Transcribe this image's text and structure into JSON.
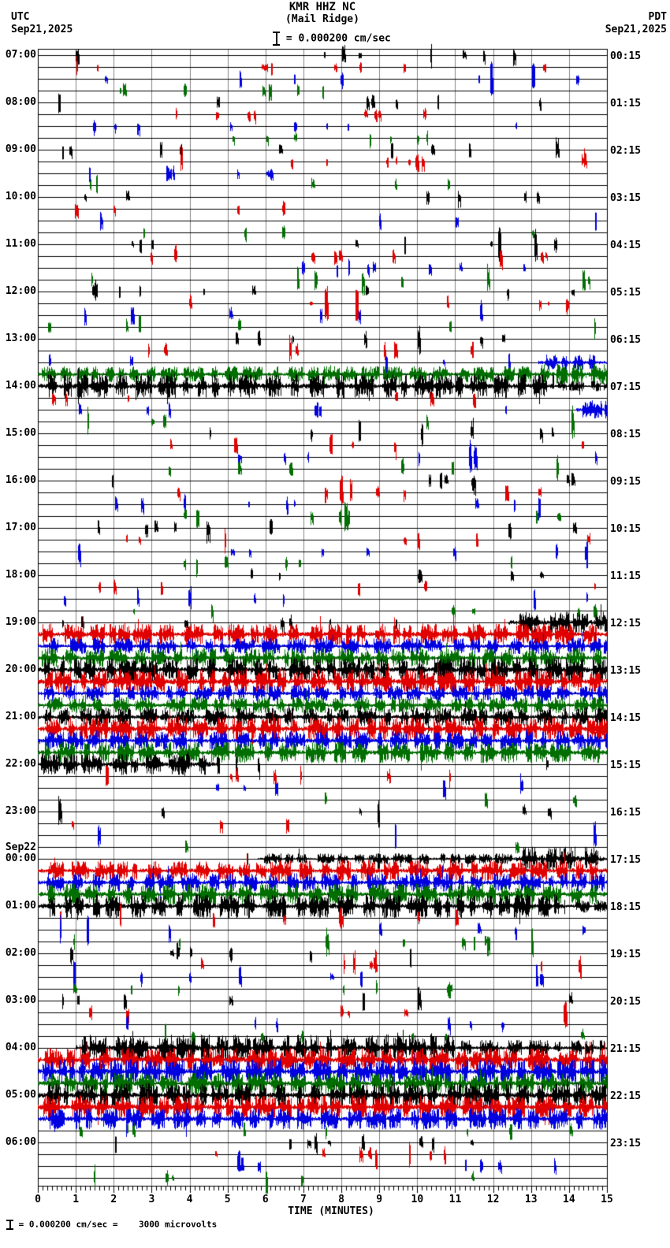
{
  "header": {
    "station_line": "KMR HHZ NC",
    "location_line": "(Mail Ridge)",
    "scale_text": "= 0.000200 cm/sec",
    "left_tz": "UTC",
    "left_date": "Sep21,2025",
    "right_tz": "PDT",
    "right_date": "Sep21,2025"
  },
  "footer": {
    "text": "= 0.000200 cm/sec =    3000 microvolts"
  },
  "axis": {
    "label": "TIME (MINUTES)",
    "ticks": [
      "0",
      "1",
      "2",
      "3",
      "4",
      "5",
      "6",
      "7",
      "8",
      "9",
      "10",
      "11",
      "12",
      "13",
      "14",
      "15"
    ],
    "minutes": 15,
    "minor_per_minute": 8
  },
  "colors": {
    "traces": [
      "#000000",
      "#e00000",
      "#0000e0",
      "#006e00"
    ],
    "grid": "#848484",
    "line": "#000000",
    "background": "#ffffff"
  },
  "chart_data": {
    "type": "helicorder",
    "row_minutes": 15,
    "date_break_label": "Sep22",
    "rows": [
      {
        "utc": "07:00",
        "pdt": "00:15",
        "c": 0,
        "spikes": 8,
        "dense": []
      },
      {
        "utc": null,
        "pdt": null,
        "c": 1,
        "spikes": 9,
        "dense": []
      },
      {
        "utc": null,
        "pdt": null,
        "c": 2,
        "spikes": 8,
        "dense": []
      },
      {
        "utc": null,
        "pdt": null,
        "c": 3,
        "spikes": 7,
        "dense": []
      },
      {
        "utc": "08:00",
        "pdt": "01:15",
        "c": 0,
        "spikes": 7,
        "dense": []
      },
      {
        "utc": null,
        "pdt": null,
        "c": 1,
        "spikes": 8,
        "dense": []
      },
      {
        "utc": null,
        "pdt": null,
        "c": 2,
        "spikes": 8,
        "dense": []
      },
      {
        "utc": null,
        "pdt": null,
        "c": 3,
        "spikes": 7,
        "dense": []
      },
      {
        "utc": "09:00",
        "pdt": "02:15",
        "c": 0,
        "spikes": 9,
        "dense": []
      },
      {
        "utc": null,
        "pdt": null,
        "c": 1,
        "spikes": 10,
        "dense": []
      },
      {
        "utc": null,
        "pdt": null,
        "c": 2,
        "spikes": 8,
        "dense": []
      },
      {
        "utc": null,
        "pdt": null,
        "c": 3,
        "spikes": 5,
        "dense": []
      },
      {
        "utc": "10:00",
        "pdt": "03:15",
        "c": 0,
        "spikes": 6,
        "dense": []
      },
      {
        "utc": null,
        "pdt": null,
        "c": 1,
        "spikes": 4,
        "dense": []
      },
      {
        "utc": null,
        "pdt": null,
        "c": 2,
        "spikes": 4,
        "dense": []
      },
      {
        "utc": null,
        "pdt": null,
        "c": 3,
        "spikes": 4,
        "dense": []
      },
      {
        "utc": "11:00",
        "pdt": "04:15",
        "c": 0,
        "spikes": 9,
        "dense": []
      },
      {
        "utc": null,
        "pdt": null,
        "c": 1,
        "spikes": 9,
        "dense": []
      },
      {
        "utc": null,
        "pdt": null,
        "c": 2,
        "spikes": 8,
        "dense": []
      },
      {
        "utc": null,
        "pdt": null,
        "c": 3,
        "spikes": 8,
        "dense": []
      },
      {
        "utc": "12:00",
        "pdt": "05:15",
        "c": 0,
        "spikes": 9,
        "dense": []
      },
      {
        "utc": null,
        "pdt": null,
        "c": 1,
        "spikes": 8,
        "dense": []
      },
      {
        "utc": null,
        "pdt": null,
        "c": 2,
        "spikes": 6,
        "dense": []
      },
      {
        "utc": null,
        "pdt": null,
        "c": 3,
        "spikes": 6,
        "dense": []
      },
      {
        "utc": "13:00",
        "pdt": "06:15",
        "c": 0,
        "spikes": 7,
        "dense": []
      },
      {
        "utc": null,
        "pdt": null,
        "c": 1,
        "spikes": 7,
        "dense": []
      },
      {
        "utc": null,
        "pdt": null,
        "c": 2,
        "spikes": 5,
        "dense": [
          [
            13.2,
            15,
            6
          ]
        ]
      },
      {
        "utc": null,
        "pdt": null,
        "c": 3,
        "spikes": 0,
        "dense": [
          [
            0,
            13,
            6
          ],
          [
            13,
            15,
            8
          ]
        ]
      },
      {
        "utc": "14:00",
        "pdt": "07:15",
        "c": 0,
        "spikes": 0,
        "dense": [
          [
            0,
            13.6,
            9
          ],
          [
            13.6,
            15,
            4
          ]
        ]
      },
      {
        "utc": null,
        "pdt": null,
        "c": 1,
        "spikes": 6,
        "dense": []
      },
      {
        "utc": null,
        "pdt": null,
        "c": 2,
        "spikes": 7,
        "dense": [
          [
            14.2,
            15,
            7
          ]
        ]
      },
      {
        "utc": null,
        "pdt": null,
        "c": 3,
        "spikes": 5,
        "dense": []
      },
      {
        "utc": "15:00",
        "pdt": "08:15",
        "c": 0,
        "spikes": 7,
        "dense": []
      },
      {
        "utc": null,
        "pdt": null,
        "c": 1,
        "spikes": 6,
        "dense": []
      },
      {
        "utc": null,
        "pdt": null,
        "c": 2,
        "spikes": 7,
        "dense": []
      },
      {
        "utc": null,
        "pdt": null,
        "c": 3,
        "spikes": 6,
        "dense": []
      },
      {
        "utc": "16:00",
        "pdt": "09:15",
        "c": 0,
        "spikes": 8,
        "dense": []
      },
      {
        "utc": null,
        "pdt": null,
        "c": 1,
        "spikes": 8,
        "dense": []
      },
      {
        "utc": null,
        "pdt": null,
        "c": 2,
        "spikes": 9,
        "dense": []
      },
      {
        "utc": null,
        "pdt": null,
        "c": 3,
        "spikes": 8,
        "dense": []
      },
      {
        "utc": "17:00",
        "pdt": "10:15",
        "c": 0,
        "spikes": 8,
        "dense": []
      },
      {
        "utc": null,
        "pdt": null,
        "c": 1,
        "spikes": 7,
        "dense": []
      },
      {
        "utc": null,
        "pdt": null,
        "c": 2,
        "spikes": 8,
        "dense": []
      },
      {
        "utc": null,
        "pdt": null,
        "c": 3,
        "spikes": 6,
        "dense": []
      },
      {
        "utc": "18:00",
        "pdt": "11:15",
        "c": 0,
        "spikes": 6,
        "dense": []
      },
      {
        "utc": null,
        "pdt": null,
        "c": 1,
        "spikes": 6,
        "dense": []
      },
      {
        "utc": null,
        "pdt": null,
        "c": 2,
        "spikes": 7,
        "dense": []
      },
      {
        "utc": null,
        "pdt": null,
        "c": 3,
        "spikes": 6,
        "dense": []
      },
      {
        "utc": "19:00",
        "pdt": "12:15",
        "c": 0,
        "spikes": 7,
        "dense": [
          [
            12.4,
            15,
            8
          ]
        ]
      },
      {
        "utc": null,
        "pdt": null,
        "c": 1,
        "spikes": 0,
        "dense": [
          [
            0,
            15,
            8
          ]
        ]
      },
      {
        "utc": null,
        "pdt": null,
        "c": 2,
        "spikes": 0,
        "dense": [
          [
            0,
            15,
            6
          ]
        ]
      },
      {
        "utc": null,
        "pdt": null,
        "c": 3,
        "spikes": 0,
        "dense": [
          [
            0,
            15,
            7
          ]
        ]
      },
      {
        "utc": "20:00",
        "pdt": "13:15",
        "c": 0,
        "spikes": 0,
        "dense": [
          [
            0,
            15,
            9
          ]
        ]
      },
      {
        "utc": null,
        "pdt": null,
        "c": 1,
        "spikes": 0,
        "dense": [
          [
            0,
            15,
            9
          ]
        ]
      },
      {
        "utc": null,
        "pdt": null,
        "c": 2,
        "spikes": 0,
        "dense": [
          [
            0,
            15,
            6
          ]
        ]
      },
      {
        "utc": null,
        "pdt": null,
        "c": 3,
        "spikes": 0,
        "dense": [
          [
            0,
            15,
            6
          ]
        ]
      },
      {
        "utc": "21:00",
        "pdt": "14:15",
        "c": 0,
        "spikes": 0,
        "dense": [
          [
            0,
            15,
            7
          ]
        ]
      },
      {
        "utc": null,
        "pdt": null,
        "c": 1,
        "spikes": 0,
        "dense": [
          [
            0,
            15,
            9
          ]
        ]
      },
      {
        "utc": null,
        "pdt": null,
        "c": 2,
        "spikes": 0,
        "dense": [
          [
            0,
            15,
            7
          ]
        ]
      },
      {
        "utc": null,
        "pdt": null,
        "c": 3,
        "spikes": 0,
        "dense": [
          [
            0,
            15,
            8
          ]
        ]
      },
      {
        "utc": "22:00",
        "pdt": "15:15",
        "c": 0,
        "spikes": 4,
        "dense": [
          [
            0,
            4.8,
            8
          ]
        ]
      },
      {
        "utc": null,
        "pdt": null,
        "c": 1,
        "spikes": 7,
        "dense": []
      },
      {
        "utc": null,
        "pdt": null,
        "c": 2,
        "spikes": 5,
        "dense": []
      },
      {
        "utc": null,
        "pdt": null,
        "c": 3,
        "spikes": 3,
        "dense": []
      },
      {
        "utc": "23:00",
        "pdt": "16:15",
        "c": 0,
        "spikes": 6,
        "dense": []
      },
      {
        "utc": null,
        "pdt": null,
        "c": 1,
        "spikes": 3,
        "dense": []
      },
      {
        "utc": null,
        "pdt": null,
        "c": 2,
        "spikes": 3,
        "dense": []
      },
      {
        "utc": null,
        "pdt": null,
        "c": 3,
        "spikes": 2,
        "dense": []
      },
      {
        "utc": "00:00",
        "pdt": "17:15",
        "c": 0,
        "spikes": 3,
        "dense": [
          [
            5.8,
            12.6,
            4
          ],
          [
            12.6,
            15,
            9
          ]
        ],
        "date_break": true
      },
      {
        "utc": null,
        "pdt": null,
        "c": 1,
        "spikes": 0,
        "dense": [
          [
            0,
            6,
            7
          ],
          [
            6,
            15,
            8
          ]
        ]
      },
      {
        "utc": null,
        "pdt": null,
        "c": 2,
        "spikes": 0,
        "dense": [
          [
            0,
            15,
            7
          ]
        ]
      },
      {
        "utc": null,
        "pdt": null,
        "c": 3,
        "spikes": 0,
        "dense": [
          [
            0,
            15,
            8
          ]
        ]
      },
      {
        "utc": "01:00",
        "pdt": "18:15",
        "c": 0,
        "spikes": 0,
        "dense": [
          [
            0,
            13.9,
            9
          ],
          [
            13.9,
            15,
            5
          ]
        ]
      },
      {
        "utc": null,
        "pdt": null,
        "c": 1,
        "spikes": 8,
        "dense": []
      },
      {
        "utc": null,
        "pdt": null,
        "c": 2,
        "spikes": 7,
        "dense": []
      },
      {
        "utc": null,
        "pdt": null,
        "c": 3,
        "spikes": 9,
        "dense": []
      },
      {
        "utc": "02:00",
        "pdt": "19:15",
        "c": 0,
        "spikes": 7,
        "dense": []
      },
      {
        "utc": null,
        "pdt": null,
        "c": 1,
        "spikes": 7,
        "dense": []
      },
      {
        "utc": null,
        "pdt": null,
        "c": 2,
        "spikes": 8,
        "dense": []
      },
      {
        "utc": null,
        "pdt": null,
        "c": 3,
        "spikes": 7,
        "dense": []
      },
      {
        "utc": "03:00",
        "pdt": "20:15",
        "c": 0,
        "spikes": 7,
        "dense": []
      },
      {
        "utc": null,
        "pdt": null,
        "c": 1,
        "spikes": 6,
        "dense": []
      },
      {
        "utc": null,
        "pdt": null,
        "c": 2,
        "spikes": 6,
        "dense": []
      },
      {
        "utc": null,
        "pdt": null,
        "c": 3,
        "spikes": 7,
        "dense": []
      },
      {
        "utc": "04:00",
        "pdt": "21:15",
        "c": 0,
        "spikes": 1,
        "dense": [
          [
            1,
            11,
            10
          ],
          [
            11,
            15,
            6
          ]
        ]
      },
      {
        "utc": null,
        "pdt": null,
        "c": 1,
        "spikes": 0,
        "dense": [
          [
            0,
            15,
            9
          ]
        ]
      },
      {
        "utc": null,
        "pdt": null,
        "c": 2,
        "spikes": 0,
        "dense": [
          [
            0,
            15,
            9
          ]
        ]
      },
      {
        "utc": null,
        "pdt": null,
        "c": 3,
        "spikes": 0,
        "dense": [
          [
            0,
            15,
            8
          ]
        ]
      },
      {
        "utc": "05:00",
        "pdt": "22:15",
        "c": 0,
        "spikes": 0,
        "dense": [
          [
            0,
            15,
            9
          ]
        ]
      },
      {
        "utc": null,
        "pdt": null,
        "c": 1,
        "spikes": 0,
        "dense": [
          [
            0,
            15,
            9
          ]
        ]
      },
      {
        "utc": null,
        "pdt": null,
        "c": 2,
        "spikes": 0,
        "dense": [
          [
            0,
            15,
            8
          ]
        ]
      },
      {
        "utc": null,
        "pdt": null,
        "c": 3,
        "spikes": 8,
        "dense": []
      },
      {
        "utc": "06:00",
        "pdt": "23:15",
        "c": 0,
        "spikes": 9,
        "dense": []
      },
      {
        "utc": null,
        "pdt": null,
        "c": 1,
        "spikes": 8,
        "dense": []
      },
      {
        "utc": null,
        "pdt": null,
        "c": 2,
        "spikes": 7,
        "dense": []
      },
      {
        "utc": null,
        "pdt": null,
        "c": 3,
        "spikes": 6,
        "dense": []
      }
    ]
  }
}
